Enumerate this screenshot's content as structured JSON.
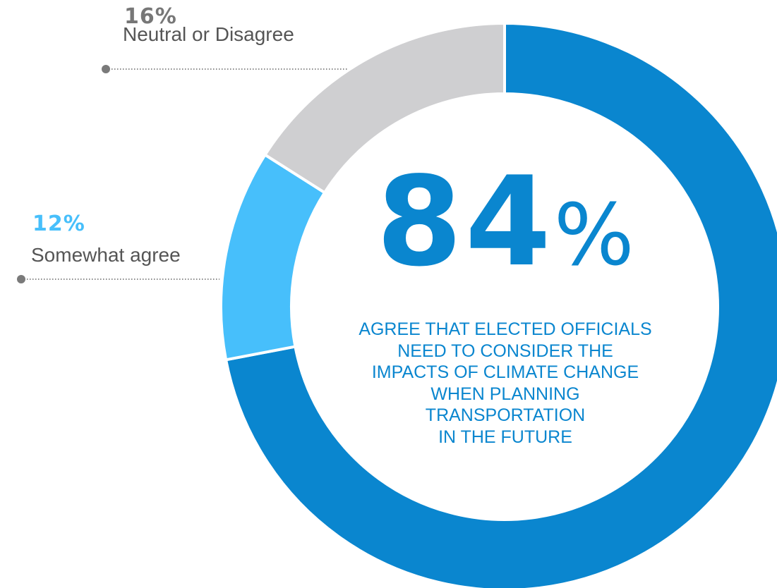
{
  "chart_data": {
    "type": "pie",
    "categories": [
      "Agree",
      "Somewhat agree",
      "Neutral or Disagree"
    ],
    "values": [
      72,
      12,
      16
    ],
    "colors": [
      "#0a86cf",
      "#47bffb",
      "#cfcfd1"
    ]
  },
  "headline": {
    "value": "84",
    "unit": "%",
    "lines": [
      "AGREE THAT ELECTED OFFICIALS",
      "NEED TO CONSIDER THE",
      "IMPACTS OF CLIMATE CHANGE",
      "WHEN PLANNING",
      "TRANSPORTATION",
      "IN THE FUTURE"
    ]
  },
  "callouts": {
    "neutral": {
      "pct": "16%",
      "label": "Neutral or Disagree",
      "color": "#777777"
    },
    "somewhat": {
      "pct": "12%",
      "label": "Somewhat agree",
      "color": "#47bffb"
    }
  }
}
